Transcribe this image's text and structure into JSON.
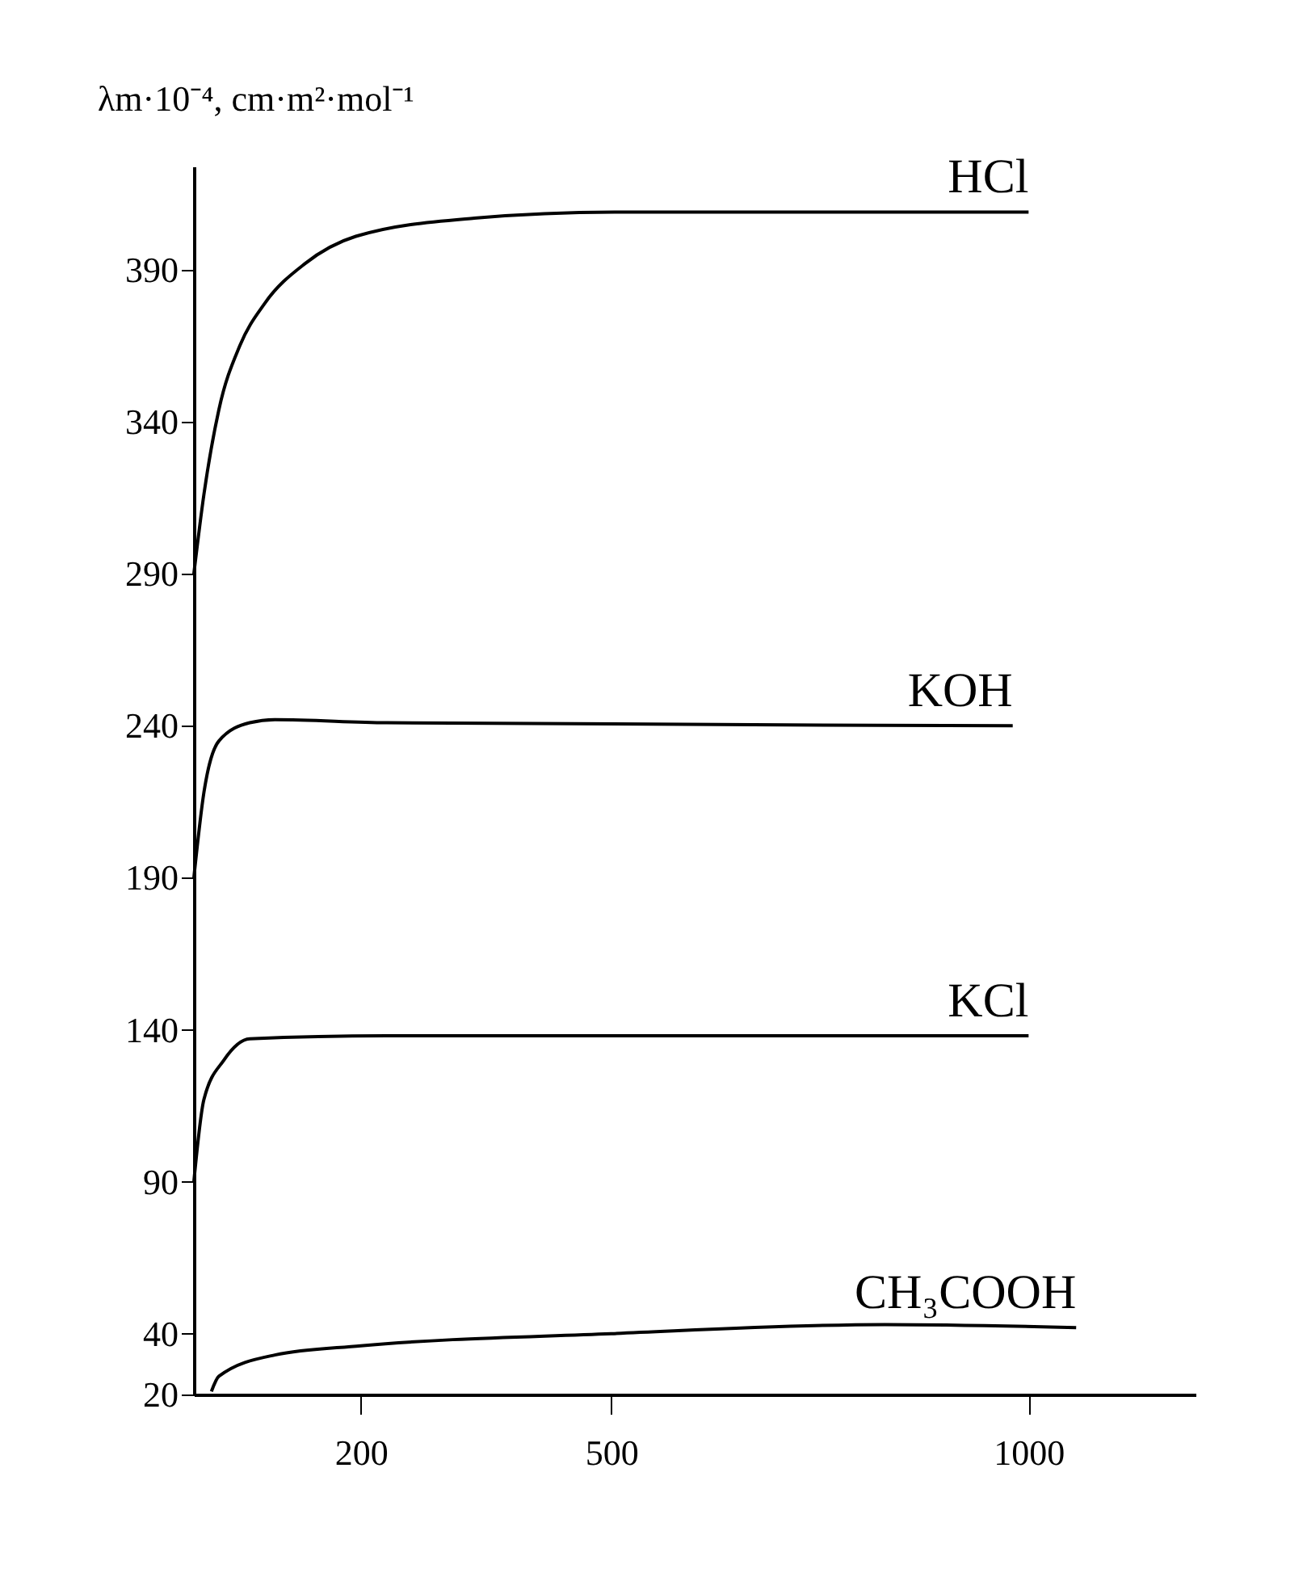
{
  "chart_data": {
    "type": "line",
    "ylabel": "λm·10⁻⁴, cm·m²·mol⁻¹",
    "xlim": [
      0,
      1200
    ],
    "xticks": [
      200,
      500,
      1000
    ],
    "ylim": [
      20,
      424
    ],
    "yticks": [
      20,
      40,
      90,
      140,
      190,
      240,
      290,
      340,
      390
    ],
    "grid": false,
    "legend": false,
    "marker": "none",
    "line_style": "solid",
    "series": [
      {
        "name": "HCl",
        "color": "#000000",
        "x": [
          0,
          12,
          30,
          55,
          85,
          133,
          194,
          336,
          504,
          1000
        ],
        "values": [
          290,
          316,
          344,
          365,
          379,
          392,
          401,
          407,
          409,
          409
        ]
      },
      {
        "name": "KOH",
        "color": "#000000",
        "x": [
          0,
          12,
          30,
          67,
          97,
          231,
          981
        ],
        "values": [
          190,
          218,
          235,
          241,
          242,
          241,
          240
        ]
      },
      {
        "name": "KCl",
        "color": "#000000",
        "x": [
          0,
          12,
          36,
          67,
          231,
          1000
        ],
        "values": [
          90,
          117,
          130,
          137,
          138,
          138
        ]
      },
      {
        "name": "CH₃COOH",
        "color": "#000000",
        "x": [
          21,
          30,
          97,
          200,
          500,
          828,
          1057
        ],
        "values": [
          21,
          26,
          33,
          36,
          40,
          43,
          42
        ]
      }
    ]
  }
}
